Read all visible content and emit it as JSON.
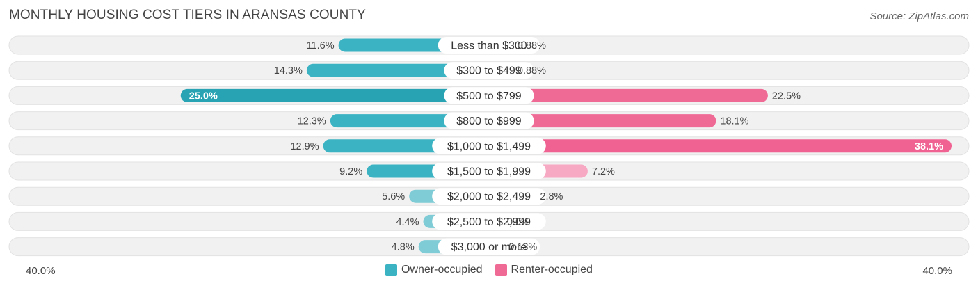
{
  "title": "MONTHLY HOUSING COST TIERS IN ARANSAS COUNTY",
  "source": "Source: ZipAtlas.com",
  "axis": {
    "left_label": "40.0%",
    "right_label": "40.0%"
  },
  "legend": [
    {
      "label": "Owner-occupied",
      "color": "#3BB3C3"
    },
    {
      "label": "Renter-occupied",
      "color": "#F06A96"
    }
  ],
  "chart_data": {
    "type": "bar",
    "orientation": "diverging-horizontal",
    "title": "MONTHLY HOUSING COST TIERS IN ARANSAS COUNTY",
    "categories": [
      "Less than $300",
      "$300 to $499",
      "$500 to $799",
      "$800 to $999",
      "$1,000 to $1,499",
      "$1,500 to $1,999",
      "$2,000 to $2,499",
      "$2,500 to $2,999",
      "$3,000 or more"
    ],
    "series": [
      {
        "name": "Owner-occupied",
        "values": [
          11.6,
          14.3,
          25.0,
          12.3,
          12.9,
          9.2,
          5.6,
          4.4,
          4.8
        ],
        "labels": [
          "11.6%",
          "14.3%",
          "25.0%",
          "12.3%",
          "12.9%",
          "9.2%",
          "5.6%",
          "4.4%",
          "4.8%"
        ]
      },
      {
        "name": "Renter-occupied",
        "values": [
          0.88,
          0.88,
          22.5,
          18.1,
          38.1,
          7.2,
          2.8,
          0.0,
          0.13
        ],
        "labels": [
          "0.88%",
          "0.88%",
          "22.5%",
          "18.1%",
          "38.1%",
          "7.2%",
          "2.8%",
          "0.0%",
          "0.13%"
        ]
      }
    ],
    "xlim": [
      -40,
      40
    ],
    "colors": {
      "owner": "#3BB3C3",
      "owner_light": "#7FCCD6",
      "owner_strong": "#27A3B3",
      "renter": "#F06A96",
      "renter_light": "#F7A8C2",
      "renter_strong": "#F06292"
    },
    "legend_position": "bottom-center",
    "grid": false
  }
}
